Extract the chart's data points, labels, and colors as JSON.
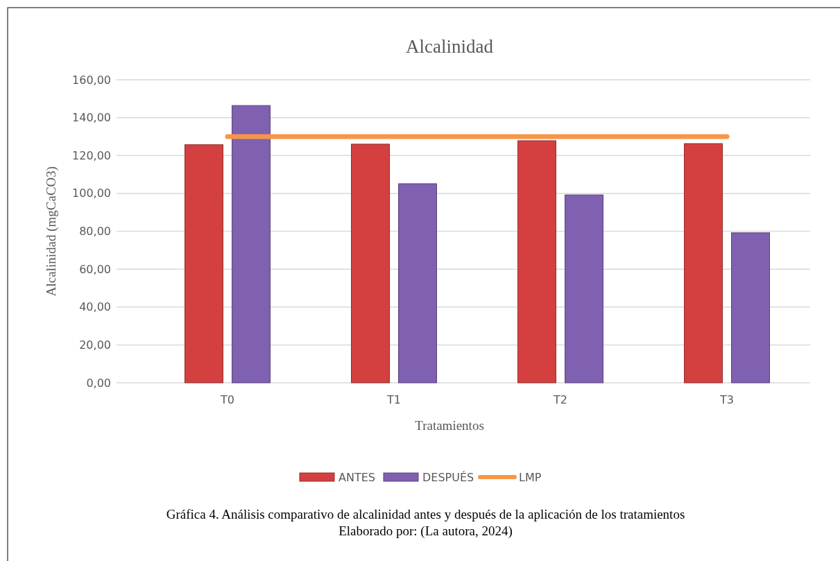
{
  "chart_data": {
    "type": "bar",
    "title": "Alcalinidad",
    "xlabel": "Tratamientos",
    "ylabel": "Alcalinidad  (mgCaCO3)",
    "categories": [
      "T0",
      "T1",
      "T2",
      "T3"
    ],
    "series": [
      {
        "name": "ANTES",
        "color": "#d44040",
        "values": [
          125.7,
          126.0,
          127.8,
          126.3
        ]
      },
      {
        "name": "DESPUÉS",
        "color": "#8060b0",
        "values": [
          146.4,
          105.1,
          99.2,
          79.2
        ]
      },
      {
        "name": "LMP",
        "type": "line",
        "color": "#f79646",
        "values": [
          130.0,
          130.0,
          130.0,
          130.0
        ]
      }
    ],
    "ylim": [
      0,
      160
    ],
    "yticks": [
      {
        "value": 0,
        "label": "0,00"
      },
      {
        "value": 20,
        "label": "20,00"
      },
      {
        "value": 40,
        "label": "40,00"
      },
      {
        "value": 60,
        "label": "60,00"
      },
      {
        "value": 80,
        "label": "80,00"
      },
      {
        "value": 100,
        "label": "100,00"
      },
      {
        "value": 120,
        "label": "120,00"
      },
      {
        "value": 140,
        "label": "140,00"
      },
      {
        "value": 160,
        "label": "160,00"
      }
    ],
    "grid": "y",
    "legend": "bottom",
    "annotations": [
      "Gráfica 4. Análisis comparativo de alcalinidad antes y después de la aplicación de los tratamientos",
      "Elaborado por: (La autora, 2024)"
    ]
  }
}
